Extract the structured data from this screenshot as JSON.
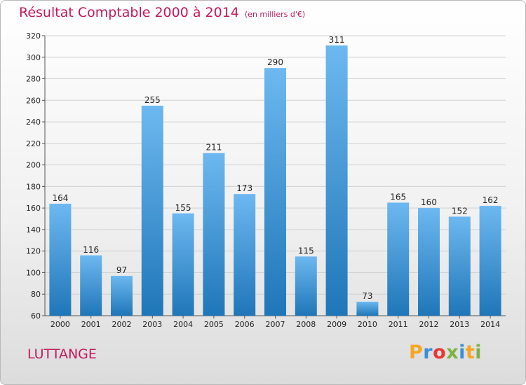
{
  "header": {
    "title": "Résultat Comptable 2000 à 2014",
    "subtitle": "(en milliers d'€)"
  },
  "commune": "LUTTANGE",
  "logo": {
    "letters": [
      "P",
      "r",
      "o",
      "x",
      "i",
      "t",
      "i"
    ],
    "colors": [
      "#f5a623",
      "#3a8fd6",
      "#e53935",
      "#7cb342",
      "#3a8fd6",
      "#f5a623",
      "#7cb342"
    ]
  },
  "colors": {
    "bar_light": "#6db8f0",
    "bar_dark": "#1f76b8",
    "title": "#c2185b"
  },
  "chart_data": {
    "type": "bar",
    "categories": [
      "2000",
      "2001",
      "2002",
      "2003",
      "2004",
      "2005",
      "2006",
      "2007",
      "2008",
      "2009",
      "2010",
      "2011",
      "2012",
      "2013",
      "2014"
    ],
    "values": [
      164,
      116,
      97,
      255,
      155,
      211,
      173,
      290,
      115,
      311,
      73,
      165,
      160,
      152,
      162
    ],
    "ylim": [
      60,
      320
    ],
    "yticks": [
      60,
      80,
      100,
      120,
      140,
      160,
      180,
      200,
      220,
      240,
      260,
      280,
      300,
      320
    ],
    "grid": true
  }
}
